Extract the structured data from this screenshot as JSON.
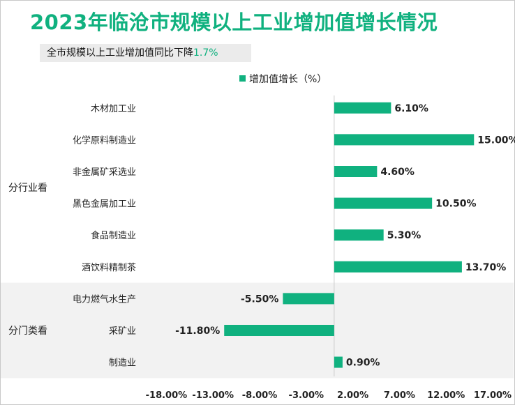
{
  "title": "2023年临沧市规模以上工业增加值增长情况",
  "subtitle": {
    "text": "全市规模以上工业增加值同比下降",
    "highlight": "1.7%"
  },
  "colors": {
    "bar": "#10b17f",
    "accent": "#10b17f",
    "band": "#f2f2f2"
  },
  "chart_data": {
    "type": "bar",
    "orientation": "horizontal",
    "legend": {
      "label": "增加值增长（%）",
      "position": "top"
    },
    "series": [
      {
        "name": "增加值增长（%）",
        "values": [
          6.1,
          15.0,
          4.6,
          10.5,
          5.3,
          13.7,
          -5.5,
          -11.8,
          0.9
        ]
      }
    ],
    "categories": [
      "木材加工业",
      "化学原料制造业",
      "非金属矿采选业",
      "黑色金属加工业",
      "食品制造业",
      "酒饮料精制茶",
      "电力燃气水生产",
      "采矿业",
      "制造业"
    ],
    "value_labels": [
      "6.10%",
      "15.00%",
      "4.60%",
      "10.50%",
      "5.30%",
      "13.70%",
      "-5.50%",
      "-11.80%",
      "0.90%"
    ],
    "groups": [
      {
        "label": "分行业看",
        "start": 0,
        "end": 5
      },
      {
        "label": "分门类看",
        "start": 6,
        "end": 8
      }
    ],
    "x_ticks": [
      -18,
      -13,
      -8,
      -3,
      2,
      7,
      12,
      17
    ],
    "x_tick_labels": [
      "-18.00%",
      "-13.00%",
      "-8.00%",
      "-3.00%",
      "2.00%",
      "7.00%",
      "12.00%",
      "17.00%"
    ],
    "xlim": [
      -20.5,
      17
    ]
  }
}
